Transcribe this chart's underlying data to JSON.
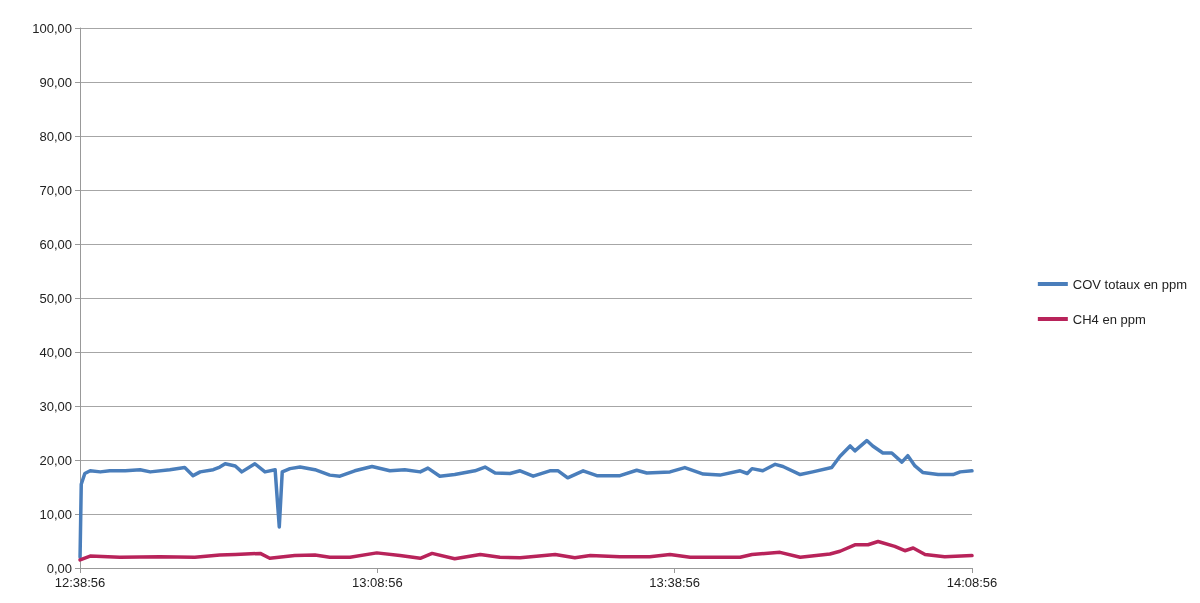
{
  "chart_data": {
    "type": "line",
    "grid": "y",
    "legend": "right",
    "marker": "none",
    "line_style": "solid",
    "xlim": [
      12.6489,
      14.1489
    ],
    "xticks": [
      {
        "value": 12.6489,
        "label": "12:38:56"
      },
      {
        "value": 13.1489,
        "label": "13:08:56"
      },
      {
        "value": 13.6489,
        "label": "13:38:56"
      },
      {
        "value": 14.1489,
        "label": "14:08:56"
      }
    ],
    "ylim": [
      0,
      100
    ],
    "yticks": [
      {
        "value": 0,
        "label": "0,00"
      },
      {
        "value": 10,
        "label": "10,00"
      },
      {
        "value": 20,
        "label": "20,00"
      },
      {
        "value": 30,
        "label": "30,00"
      },
      {
        "value": 40,
        "label": "40,00"
      },
      {
        "value": 50,
        "label": "50,00"
      },
      {
        "value": 60,
        "label": "60,00"
      },
      {
        "value": 70,
        "label": "70,00"
      },
      {
        "value": 80,
        "label": "80,00"
      },
      {
        "value": 90,
        "label": "90,00"
      },
      {
        "value": 100,
        "label": "100,00"
      }
    ],
    "series": [
      {
        "name": "COV totaux en ppm",
        "color": "#4a7ebb",
        "x": [
          12.649,
          12.651,
          12.657,
          12.666,
          12.683,
          12.699,
          12.725,
          12.75,
          12.767,
          12.8,
          12.825,
          12.839,
          12.851,
          12.873,
          12.884,
          12.893,
          12.91,
          12.921,
          12.943,
          12.96,
          12.977,
          12.984,
          12.989,
          13.002,
          13.019,
          13.044,
          13.069,
          13.086,
          13.111,
          13.14,
          13.17,
          13.195,
          13.221,
          13.234,
          13.254,
          13.279,
          13.313,
          13.33,
          13.347,
          13.372,
          13.389,
          13.411,
          13.439,
          13.453,
          13.469,
          13.495,
          13.518,
          13.557,
          13.585,
          13.602,
          13.641,
          13.666,
          13.697,
          13.725,
          13.759,
          13.771,
          13.779,
          13.797,
          13.818,
          13.831,
          13.86,
          13.881,
          13.913,
          13.927,
          13.944,
          13.952,
          13.972,
          13.982,
          13.999,
          14.014,
          14.031,
          14.041,
          14.053,
          14.066,
          14.092,
          14.117,
          14.129,
          14.1489
        ],
        "values": [
          2,
          15.5,
          17.5,
          18,
          17.8,
          18,
          18,
          18.2,
          17.8,
          18.2,
          18.6,
          17.1,
          17.8,
          18.2,
          18.7,
          19.3,
          18.9,
          17.8,
          19.3,
          17.8,
          18.2,
          7.6,
          17.8,
          18.4,
          18.7,
          18.2,
          17.2,
          17,
          18,
          18.8,
          18,
          18.2,
          17.8,
          18.5,
          17,
          17.3,
          18,
          18.7,
          17.6,
          17.5,
          18,
          17,
          18,
          18,
          16.7,
          18,
          17.1,
          17.1,
          18.1,
          17.6,
          17.8,
          18.6,
          17.4,
          17.2,
          18,
          17.5,
          18.4,
          18,
          19.2,
          18.8,
          17.3,
          17.8,
          18.6,
          20.7,
          22.6,
          21.7,
          23.6,
          22.6,
          21.3,
          21.3,
          19.6,
          20.8,
          18.9,
          17.7,
          17.3,
          17.3,
          17.8,
          18
        ]
      },
      {
        "name": "CH4 en ppm",
        "color": "#b8235a",
        "x": [
          12.649,
          12.666,
          12.716,
          12.783,
          12.842,
          12.884,
          12.91,
          12.952,
          12.968,
          13.01,
          13.044,
          13.069,
          13.103,
          13.148,
          13.187,
          13.221,
          13.241,
          13.279,
          13.322,
          13.355,
          13.389,
          13.448,
          13.481,
          13.507,
          13.557,
          13.607,
          13.641,
          13.675,
          13.759,
          13.779,
          13.826,
          13.86,
          13.91,
          13.927,
          13.952,
          13.974,
          13.991,
          14.019,
          14.036,
          14.05,
          14.07,
          14.103,
          14.1489
        ],
        "values": [
          1.5,
          2.2,
          2,
          2.1,
          2,
          2.4,
          2.5,
          2.7,
          1.8,
          2.3,
          2.4,
          2,
          2,
          2.8,
          2.3,
          1.8,
          2.7,
          1.7,
          2.5,
          2,
          1.9,
          2.5,
          1.9,
          2.3,
          2.1,
          2.1,
          2.5,
          2,
          2,
          2.5,
          2.9,
          2,
          2.6,
          3.1,
          4.3,
          4.3,
          4.9,
          4,
          3.2,
          3.7,
          2.5,
          2.1,
          2.3
        ]
      }
    ]
  }
}
